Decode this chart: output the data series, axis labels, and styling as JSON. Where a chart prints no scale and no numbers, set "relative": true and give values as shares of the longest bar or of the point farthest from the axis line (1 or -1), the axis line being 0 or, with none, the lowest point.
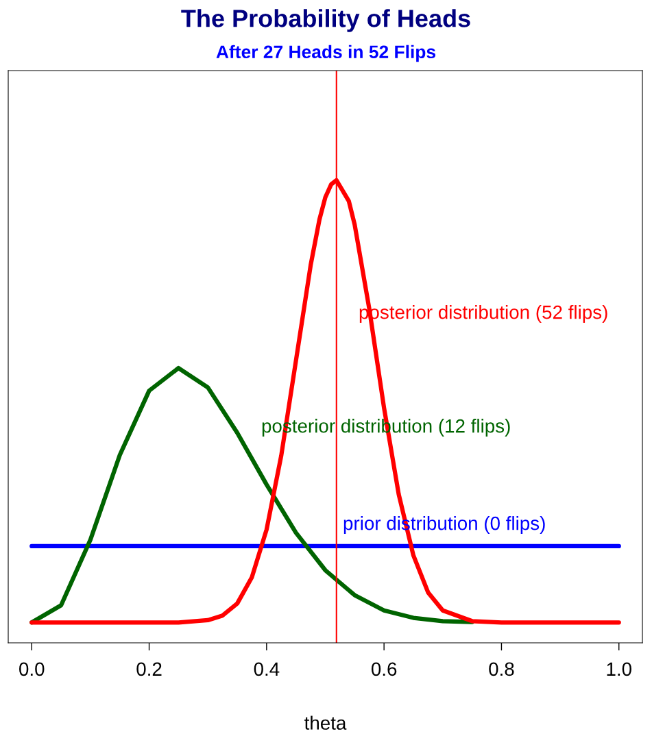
{
  "chart_data": {
    "type": "line",
    "title": "The Probability of Heads",
    "subtitle": "After 27 Heads in 52 Flips",
    "xlabel": "theta",
    "relative": true,
    "xlim": [
      -0.04,
      1.04
    ],
    "xticks": [
      {
        "value": 0,
        "label": "0.0"
      },
      {
        "value": 0.2,
        "label": "0.2"
      },
      {
        "value": 0.4,
        "label": "0.4"
      },
      {
        "value": 0.6,
        "label": "0.6"
      },
      {
        "value": 0.8,
        "label": "0.8"
      },
      {
        "value": 1,
        "label": "1.0"
      }
    ],
    "tick_labels": "x",
    "grid": false,
    "legend": false,
    "marker": "none",
    "line_style": "solid",
    "series": [
      {
        "name": "prior distribution (0 flips)",
        "color": "#0000ff",
        "x": [
          0,
          1
        ],
        "values": [
          0.209,
          0.209
        ]
      },
      {
        "name": "posterior distribution (12 flips)",
        "color": "#006400",
        "x": [
          0,
          0.05,
          0.1,
          0.15,
          0.2,
          0.25,
          0.3,
          0.35,
          0.4,
          0.45,
          0.5,
          0.55,
          0.6,
          0.65,
          0.7,
          0.75
        ],
        "values": [
          0.044,
          0.081,
          0.223,
          0.406,
          0.545,
          0.594,
          0.552,
          0.454,
          0.342,
          0.238,
          0.157,
          0.103,
          0.07,
          0.054,
          0.047,
          0.045
        ]
      },
      {
        "name": "posterior distribution (52 flips)",
        "color": "#ff0000",
        "x": [
          0,
          0.1,
          0.2,
          0.25,
          0.3,
          0.325,
          0.35,
          0.375,
          0.4,
          0.425,
          0.45,
          0.475,
          0.49,
          0.5,
          0.51,
          0.519,
          0.54,
          0.55,
          0.575,
          0.6,
          0.625,
          0.65,
          0.675,
          0.7,
          0.75,
          0.8,
          0.9,
          1
        ],
        "values": [
          0.044,
          0.044,
          0.044,
          0.044,
          0.049,
          0.059,
          0.085,
          0.142,
          0.245,
          0.405,
          0.61,
          0.816,
          0.915,
          0.963,
          0.991,
          1,
          0.955,
          0.904,
          0.721,
          0.508,
          0.321,
          0.189,
          0.109,
          0.07,
          0.047,
          0.044,
          0.044,
          0.044
        ]
      }
    ],
    "ref_lines": [
      {
        "axis": "x",
        "value": 0.519,
        "color": "#ff0000",
        "line_style": "solid"
      }
    ]
  }
}
